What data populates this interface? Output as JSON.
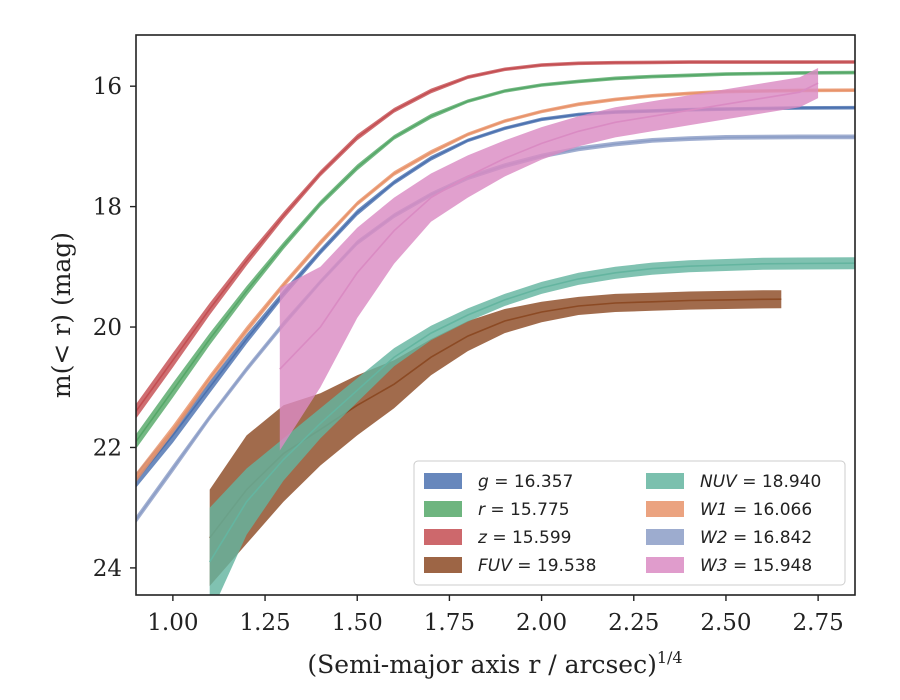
{
  "chart_data": {
    "type": "line",
    "xlabel": "(Semi-major axis r / arcsec)",
    "xlabel_superscript": "1/4",
    "ylabel": "m(< r) (mag)",
    "xlim": [
      0.9,
      2.85
    ],
    "ylim": [
      24.45,
      15.15
    ],
    "y_inverted": true,
    "x_ticks": [
      "1.00",
      "1.25",
      "1.50",
      "1.75",
      "2.00",
      "2.25",
      "2.50",
      "2.75"
    ],
    "x_tick_values": [
      1.0,
      1.25,
      1.5,
      1.75,
      2.0,
      2.25,
      2.5,
      2.75
    ],
    "y_ticks": [
      "16",
      "18",
      "20",
      "22",
      "24"
    ],
    "y_tick_values": [
      16,
      18,
      20,
      22,
      24
    ],
    "grid": false,
    "legend_position": "lower-right",
    "series": [
      {
        "name": "g = 16.357",
        "prefix": "g",
        "value": "16.357",
        "color": "#4c72b0",
        "x": [
          0.9,
          1.0,
          1.1,
          1.2,
          1.3,
          1.4,
          1.5,
          1.6,
          1.7,
          1.8,
          1.9,
          2.0,
          2.1,
          2.2,
          2.3,
          2.4,
          2.5,
          2.6,
          2.7,
          2.85
        ],
        "y": [
          22.55,
          21.8,
          21.0,
          20.2,
          19.45,
          18.75,
          18.1,
          17.6,
          17.2,
          16.9,
          16.7,
          16.55,
          16.47,
          16.43,
          16.41,
          16.39,
          16.38,
          16.37,
          16.36,
          16.357
        ],
        "band": [
          0.12,
          0.12,
          0.1,
          0.08,
          0.06,
          0.05,
          0.05,
          0.04,
          0.04,
          0.03,
          0.03,
          0.03,
          0.03,
          0.03,
          0.03,
          0.03,
          0.03,
          0.03,
          0.03,
          0.03
        ]
      },
      {
        "name": "r = 15.775",
        "prefix": "r",
        "value": "15.775",
        "color": "#55a868",
        "x": [
          0.9,
          1.0,
          1.1,
          1.2,
          1.3,
          1.4,
          1.5,
          1.6,
          1.7,
          1.8,
          1.9,
          2.0,
          2.1,
          2.2,
          2.3,
          2.4,
          2.5,
          2.6,
          2.7,
          2.85
        ],
        "y": [
          21.9,
          21.05,
          20.2,
          19.4,
          18.65,
          17.95,
          17.35,
          16.85,
          16.5,
          16.25,
          16.08,
          15.98,
          15.92,
          15.87,
          15.84,
          15.82,
          15.8,
          15.79,
          15.78,
          15.775
        ],
        "band": [
          0.12,
          0.12,
          0.1,
          0.08,
          0.06,
          0.05,
          0.05,
          0.04,
          0.04,
          0.03,
          0.03,
          0.03,
          0.03,
          0.03,
          0.03,
          0.03,
          0.03,
          0.03,
          0.03,
          0.03
        ]
      },
      {
        "name": "z = 15.599",
        "prefix": "z",
        "value": "15.599",
        "color": "#c44e52",
        "x": [
          0.9,
          1.0,
          1.1,
          1.2,
          1.3,
          1.4,
          1.5,
          1.6,
          1.7,
          1.8,
          1.9,
          2.0,
          2.1,
          2.2,
          2.3,
          2.4,
          2.5,
          2.6,
          2.7,
          2.85
        ],
        "y": [
          21.4,
          20.55,
          19.7,
          18.9,
          18.15,
          17.45,
          16.85,
          16.4,
          16.08,
          15.85,
          15.72,
          15.65,
          15.62,
          15.61,
          15.605,
          15.6,
          15.6,
          15.6,
          15.6,
          15.599
        ],
        "band": [
          0.12,
          0.12,
          0.1,
          0.08,
          0.06,
          0.05,
          0.05,
          0.04,
          0.04,
          0.03,
          0.03,
          0.03,
          0.03,
          0.03,
          0.03,
          0.03,
          0.03,
          0.03,
          0.03,
          0.03
        ]
      },
      {
        "name": "FUV = 19.538",
        "prefix": "FUV",
        "value": "19.538",
        "color": "#8c4a24",
        "x": [
          1.1,
          1.2,
          1.3,
          1.4,
          1.5,
          1.6,
          1.7,
          1.8,
          1.9,
          2.0,
          2.1,
          2.2,
          2.3,
          2.4,
          2.5,
          2.6,
          2.65
        ],
        "y": [
          23.5,
          22.7,
          22.1,
          21.7,
          21.3,
          20.95,
          20.5,
          20.15,
          19.9,
          19.75,
          19.65,
          19.6,
          19.58,
          19.56,
          19.55,
          19.54,
          19.538
        ],
        "band": [
          0.8,
          0.9,
          0.8,
          0.6,
          0.5,
          0.4,
          0.3,
          0.25,
          0.2,
          0.17,
          0.15,
          0.15,
          0.15,
          0.15,
          0.15,
          0.15,
          0.15
        ]
      },
      {
        "name": "NUV = 18.940",
        "prefix": "NUV",
        "value": "18.940",
        "color": "#64b5a0",
        "x": [
          1.1,
          1.2,
          1.3,
          1.4,
          1.5,
          1.6,
          1.7,
          1.8,
          1.9,
          2.0,
          2.1,
          2.2,
          2.3,
          2.4,
          2.5,
          2.6,
          2.7,
          2.85
        ],
        "y": [
          23.9,
          22.9,
          22.2,
          21.6,
          21.05,
          20.5,
          20.1,
          19.8,
          19.55,
          19.35,
          19.2,
          19.1,
          19.03,
          18.99,
          18.97,
          18.95,
          18.945,
          18.94
        ],
        "band": [
          0.9,
          0.55,
          0.35,
          0.25,
          0.2,
          0.15,
          0.12,
          0.11,
          0.1,
          0.1,
          0.1,
          0.1,
          0.1,
          0.1,
          0.1,
          0.1,
          0.1,
          0.1
        ]
      },
      {
        "name": "W1 = 16.066",
        "prefix": "W1",
        "value": "16.066",
        "color": "#e8936a",
        "x": [
          0.9,
          1.0,
          1.1,
          1.2,
          1.3,
          1.4,
          1.5,
          1.6,
          1.7,
          1.8,
          1.9,
          2.0,
          2.1,
          2.2,
          2.3,
          2.4,
          2.5,
          2.6,
          2.7,
          2.85
        ],
        "y": [
          22.5,
          21.7,
          20.85,
          20.05,
          19.3,
          18.6,
          17.95,
          17.45,
          17.1,
          16.8,
          16.58,
          16.42,
          16.3,
          16.22,
          16.16,
          16.12,
          16.09,
          16.08,
          16.07,
          16.066
        ],
        "band": [
          0.08,
          0.07,
          0.06,
          0.06,
          0.05,
          0.05,
          0.04,
          0.04,
          0.04,
          0.03,
          0.03,
          0.03,
          0.03,
          0.03,
          0.03,
          0.03,
          0.03,
          0.03,
          0.03,
          0.03
        ]
      },
      {
        "name": "W2 = 16.842",
        "prefix": "W2",
        "value": "16.842",
        "color": "#8c9ec7",
        "x": [
          0.9,
          1.0,
          1.1,
          1.2,
          1.3,
          1.4,
          1.5,
          1.6,
          1.7,
          1.8,
          1.9,
          2.0,
          2.1,
          2.2,
          2.3,
          2.4,
          2.5,
          2.6,
          2.7,
          2.85
        ],
        "y": [
          23.2,
          22.35,
          21.5,
          20.7,
          19.95,
          19.25,
          18.6,
          18.15,
          17.8,
          17.52,
          17.32,
          17.16,
          17.04,
          16.96,
          16.9,
          16.87,
          16.85,
          16.845,
          16.842,
          16.842
        ],
        "band": [
          0.06,
          0.06,
          0.05,
          0.05,
          0.05,
          0.04,
          0.04,
          0.04,
          0.04,
          0.04,
          0.04,
          0.04,
          0.04,
          0.04,
          0.04,
          0.04,
          0.04,
          0.04,
          0.04,
          0.04
        ]
      },
      {
        "name": "W3 = 15.948",
        "prefix": "W3",
        "value": "15.948",
        "color": "#da8bc3",
        "x": [
          1.29,
          1.4,
          1.5,
          1.6,
          1.7,
          1.8,
          1.9,
          2.0,
          2.1,
          2.2,
          2.3,
          2.4,
          2.5,
          2.6,
          2.7,
          2.75
        ],
        "y": [
          20.7,
          20.0,
          19.1,
          18.4,
          17.85,
          17.5,
          17.2,
          16.95,
          16.75,
          16.6,
          16.5,
          16.4,
          16.3,
          16.2,
          16.1,
          15.948
        ],
        "band": [
          1.35,
          1.0,
          0.75,
          0.55,
          0.4,
          0.35,
          0.3,
          0.27,
          0.25,
          0.25,
          0.25,
          0.25,
          0.25,
          0.25,
          0.25,
          0.25
        ]
      }
    ],
    "legend_order": [
      0,
      1,
      2,
      3,
      4,
      5,
      6,
      7
    ]
  }
}
